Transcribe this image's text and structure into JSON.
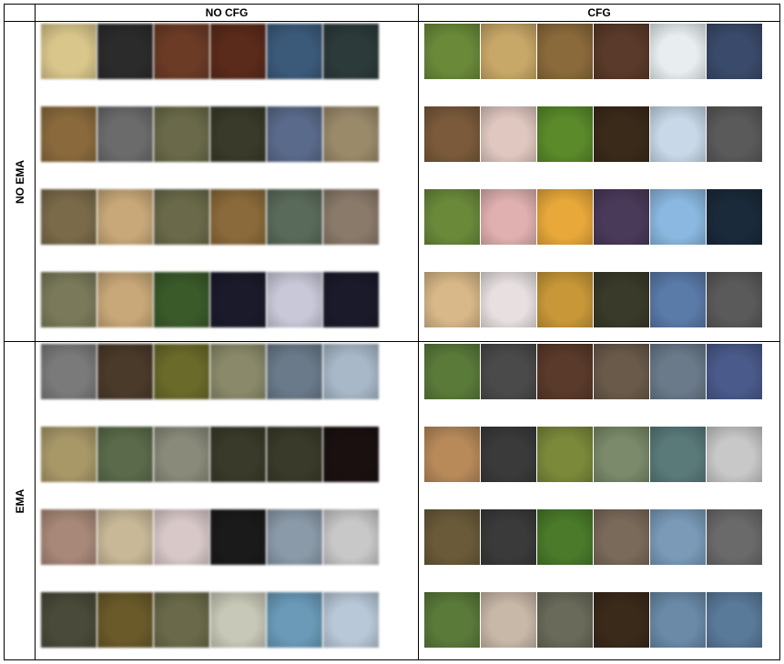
{
  "headers": {
    "corner": "",
    "col1": "NO CFG",
    "col2": "CFG"
  },
  "rows": [
    {
      "label": "NO EMA",
      "panels": [
        {
          "style": "blurry",
          "images": [
            [
              "#d9c68a",
              "#2b2b2b",
              "#6b3b26",
              "#5a2a1a",
              "#3b5a7a",
              "#2c3a3a"
            ],
            [
              "#8a6a3c",
              "#6b6b6b",
              "#6a6a4a",
              "#3a3a2a",
              "#5a6a8a",
              "#9a8a6a"
            ],
            [
              "#7a6a4a",
              "#c8a878",
              "#6a6a4a",
              "#8a6a3a",
              "#5a6a5a",
              "#8a7a6a"
            ],
            [
              "#7a7a5a",
              "#c8a878",
              "#3a5a2a",
              "#1a1a2a",
              "#c8c8d8",
              "#1a1a2a"
            ]
          ]
        },
        {
          "style": "",
          "images": [
            [
              "#6a8a3a",
              "#c8a868",
              "#8a6a3a",
              "#5a3a2a",
              "#e8eef0",
              "#3a4a6a"
            ],
            [
              "#7a5a3a",
              "#e0c8c0",
              "#5a8a2a",
              "#3a2a1a",
              "#c8d8e8",
              "#5a5a5a"
            ],
            [
              "#6a8a3a",
              "#e0b0b0",
              "#e8a83a",
              "#4a3a5a",
              "#8ab8e0",
              "#1a2a3a"
            ],
            [
              "#d8b888",
              "#e8e0e0",
              "#c89838",
              "#3a3a2a",
              "#5a7aa8",
              "#5a5a5a"
            ]
          ]
        }
      ]
    },
    {
      "label": "EMA",
      "panels": [
        {
          "style": "blurry",
          "images": [
            [
              "#7a7a7a",
              "#4a3a2a",
              "#6a6a2a",
              "#8a8a6a",
              "#6a7a8a",
              "#a8b8c8"
            ],
            [
              "#a89868",
              "#5a6a4a",
              "#8a8a7a",
              "#3a3a2a",
              "#3a3a2a",
              "#1a1010"
            ],
            [
              "#a88878",
              "#c8b898",
              "#d8c8c8",
              "#1a1a1a",
              "#8a9aa8",
              "#c8c8c8"
            ],
            [
              "#4a4a3a",
              "#6a5a2a",
              "#6a6a4a",
              "#c8c8b8",
              "#6a9ab8",
              "#b8c8d8"
            ]
          ]
        },
        {
          "style": "",
          "images": [
            [
              "#5a7a3a",
              "#4a4a4a",
              "#5a3a2a",
              "#6a5a4a",
              "#6a7a8a",
              "#4a5a8a"
            ],
            [
              "#b88a5a",
              "#3a3a3a",
              "#7a8a3a",
              "#7a8a6a",
              "#5a7a7a",
              "#c8c8c8"
            ],
            [
              "#6a5a3a",
              "#3a3a3a",
              "#4a7a2a",
              "#7a6a5a",
              "#7a9ab8",
              "#6a6a6a"
            ],
            [
              "#5a7a3a",
              "#c8b8a8",
              "#6a6a5a",
              "#3a2a1a",
              "#6a8aa8",
              "#5a7a9a"
            ]
          ]
        }
      ]
    }
  ]
}
